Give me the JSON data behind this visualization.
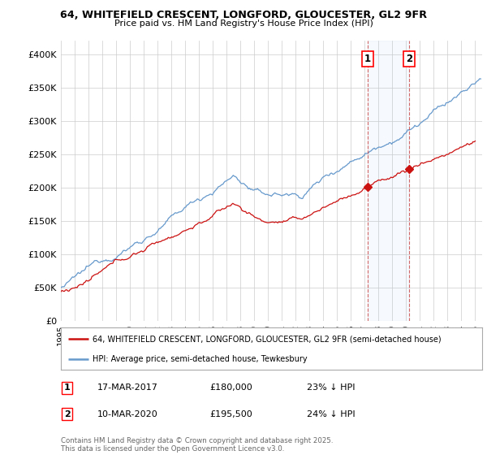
{
  "title1": "64, WHITEFIELD CRESCENT, LONGFORD, GLOUCESTER, GL2 9FR",
  "title2": "Price paid vs. HM Land Registry's House Price Index (HPI)",
  "ylabel_ticks": [
    "£0",
    "£50K",
    "£100K",
    "£150K",
    "£200K",
    "£250K",
    "£300K",
    "£350K",
    "£400K"
  ],
  "ytick_values": [
    0,
    50000,
    100000,
    150000,
    200000,
    250000,
    300000,
    350000,
    400000
  ],
  "ylim": [
    0,
    420000
  ],
  "xlim_start": 1995.0,
  "xlim_end": 2025.5,
  "hpi_color": "#6699cc",
  "price_color": "#cc1111",
  "marker1_x": 2017.21,
  "marker1_y": 180000,
  "marker2_x": 2020.21,
  "marker2_y": 195500,
  "legend_line1": "64, WHITEFIELD CRESCENT, LONGFORD, GLOUCESTER, GL2 9FR (semi-detached house)",
  "legend_line2": "HPI: Average price, semi-detached house, Tewkesbury",
  "annotation1_date": "17-MAR-2017",
  "annotation1_price": "£180,000",
  "annotation1_hpi": "23% ↓ HPI",
  "annotation2_date": "10-MAR-2020",
  "annotation2_price": "£195,500",
  "annotation2_hpi": "24% ↓ HPI",
  "footer": "Contains HM Land Registry data © Crown copyright and database right 2025.\nThis data is licensed under the Open Government Licence v3.0.",
  "background_color": "#ffffff",
  "grid_color": "#cccccc"
}
